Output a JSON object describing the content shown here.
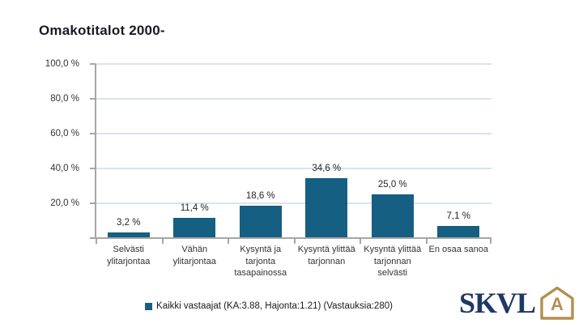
{
  "title": "Omakotitalot 2000-",
  "colors": {
    "bar": "#155F82",
    "gridline": "#dbe3f0",
    "axis": "#a6a6a6",
    "title_text": "#1a1a26",
    "logo_navy": "#1f3864",
    "logo_gold": "#b3904f"
  },
  "chart_data": {
    "type": "bar",
    "title": "Omakotitalot 2000-",
    "categories": [
      "Selvästi ylitarjontaa",
      "Vähän ylitarjontaa",
      "Kysyntä ja tarjonta tasapainossa",
      "Kysyntä ylittää tarjonnan",
      "Kysyntä ylittää tarjonnan selvästi",
      "En osaa sanoa"
    ],
    "values": [
      3.2,
      11.4,
      18.6,
      34.6,
      25.0,
      7.1
    ],
    "value_labels": [
      "3,2 %",
      "11,4 %",
      "18,6 %",
      "34,6 %",
      "25,0 %",
      "7,1 %"
    ],
    "y_ticks": [
      {
        "value": 100,
        "label": "100,0 %"
      },
      {
        "value": 80,
        "label": "80,0 %"
      },
      {
        "value": 60,
        "label": "60,0 %"
      },
      {
        "value": 40,
        "label": "40,0 %"
      },
      {
        "value": 20,
        "label": "20,0 %"
      }
    ],
    "ylim": [
      0,
      100
    ],
    "grid": "horizontal",
    "legend": "Kaikki vastaajat (KA:3.88, Hajonta:1.21) (Vastauksia:280)",
    "legend_position": "bottom-center"
  },
  "logo": {
    "text": "SKVL",
    "icon_letter": "A"
  }
}
